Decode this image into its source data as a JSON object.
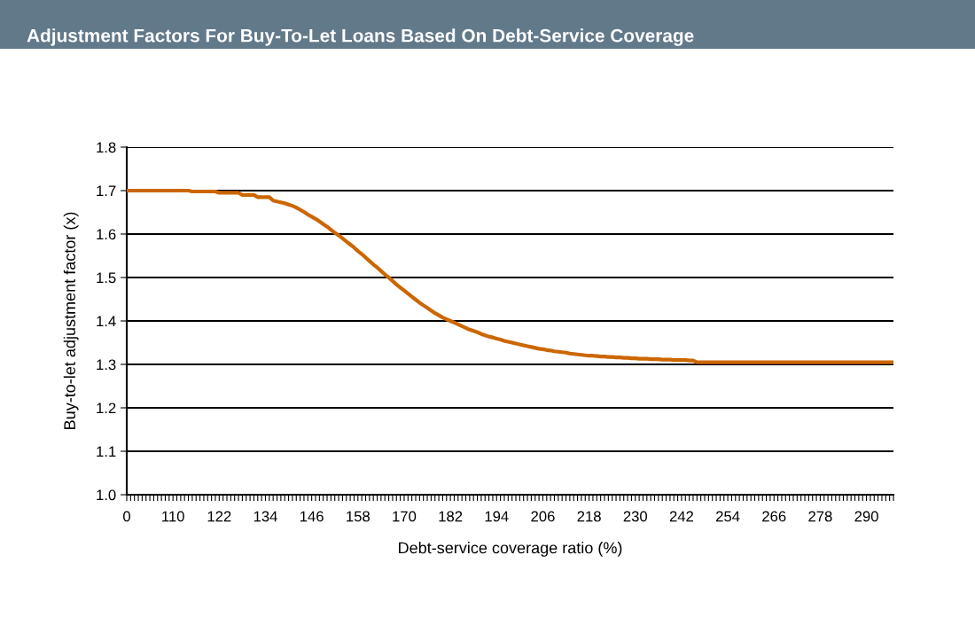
{
  "chart_data": {
    "type": "line",
    "title": "Adjustment Factors For Buy-To-Let Loans Based On Debt-Service Coverage",
    "xlabel": "Debt-service coverage ratio (%)",
    "ylabel": "Buy-to-let adjustment factor (x)",
    "categories": [
      "0",
      null,
      null,
      null,
      null,
      null,
      null,
      null,
      null,
      null,
      null,
      null,
      "110",
      null,
      null,
      null,
      null,
      null,
      null,
      null,
      null,
      null,
      null,
      null,
      "122",
      null,
      null,
      null,
      null,
      null,
      null,
      null,
      null,
      null,
      null,
      null,
      "134",
      null,
      null,
      null,
      null,
      null,
      null,
      null,
      null,
      null,
      null,
      null,
      "146",
      null,
      null,
      null,
      null,
      null,
      null,
      null,
      null,
      null,
      null,
      null,
      "158",
      null,
      null,
      null,
      null,
      null,
      null,
      null,
      null,
      null,
      null,
      null,
      "170",
      null,
      null,
      null,
      null,
      null,
      null,
      null,
      null,
      null,
      null,
      null,
      "182",
      null,
      null,
      null,
      null,
      null,
      null,
      null,
      null,
      null,
      null,
      null,
      "194",
      null,
      null,
      null,
      null,
      null,
      null,
      null,
      null,
      null,
      null,
      null,
      "206",
      null,
      null,
      null,
      null,
      null,
      null,
      null,
      null,
      null,
      null,
      null,
      "218",
      null,
      null,
      null,
      null,
      null,
      null,
      null,
      null,
      null,
      null,
      null,
      "230",
      null,
      null,
      null,
      null,
      null,
      null,
      null,
      null,
      null,
      null,
      null,
      "242",
      null,
      null,
      null,
      null,
      null,
      null,
      null,
      null,
      null,
      null,
      null,
      "254",
      null,
      null,
      null,
      null,
      null,
      null,
      null,
      null,
      null,
      null,
      null,
      "266",
      null,
      null,
      null,
      null,
      null,
      null,
      null,
      null,
      null,
      null,
      null,
      "278",
      null,
      null,
      null,
      null,
      null,
      null,
      null,
      null,
      null,
      null,
      null,
      "290",
      null,
      null,
      null,
      null,
      null,
      null,
      null
    ],
    "series": [
      {
        "color": "#cc6600",
        "values": [
          1.7,
          1.7,
          1.7,
          1.7,
          1.7,
          1.7,
          1.7,
          1.7,
          1.7,
          1.7,
          1.7,
          1.7,
          1.7,
          1.7,
          1.7,
          1.7,
          1.7,
          1.698,
          1.698,
          1.698,
          1.698,
          1.698,
          1.698,
          1.698,
          1.695,
          1.695,
          1.695,
          1.695,
          1.695,
          1.695,
          1.69,
          1.69,
          1.69,
          1.69,
          1.685,
          1.685,
          1.685,
          1.685,
          1.677,
          1.675,
          1.673,
          1.671,
          1.668,
          1.665,
          1.661,
          1.656,
          1.651,
          1.645,
          1.64,
          1.635,
          1.629,
          1.623,
          1.617,
          1.61,
          1.603,
          1.597,
          1.59,
          1.583,
          1.576,
          1.569,
          1.561,
          1.554,
          1.546,
          1.538,
          1.53,
          1.523,
          1.515,
          1.507,
          1.5,
          1.492,
          1.484,
          1.477,
          1.47,
          1.463,
          1.456,
          1.449,
          1.442,
          1.436,
          1.43,
          1.424,
          1.418,
          1.413,
          1.408,
          1.404,
          1.4,
          1.396,
          1.392,
          1.388,
          1.384,
          1.38,
          1.377,
          1.374,
          1.37,
          1.367,
          1.364,
          1.362,
          1.359,
          1.357,
          1.354,
          1.352,
          1.35,
          1.348,
          1.346,
          1.344,
          1.342,
          1.34,
          1.338,
          1.336,
          1.335,
          1.333,
          1.332,
          1.33,
          1.329,
          1.328,
          1.327,
          1.325,
          1.324,
          1.323,
          1.322,
          1.321,
          1.32,
          1.32,
          1.319,
          1.318,
          1.318,
          1.317,
          1.317,
          1.316,
          1.316,
          1.315,
          1.315,
          1.314,
          1.314,
          1.313,
          1.313,
          1.313,
          1.312,
          1.312,
          1.312,
          1.311,
          1.311,
          1.311,
          1.31,
          1.31,
          1.31,
          1.31,
          1.309,
          1.309,
          1.305,
          1.305,
          1.305,
          1.305,
          1.305,
          1.305,
          1.305,
          1.305,
          1.305,
          1.305,
          1.305,
          1.305,
          1.305,
          1.305,
          1.305,
          1.305,
          1.305,
          1.305,
          1.305,
          1.305,
          1.305,
          1.305,
          1.305,
          1.305,
          1.305,
          1.305,
          1.305,
          1.305,
          1.305,
          1.305,
          1.305,
          1.305,
          1.305,
          1.305,
          1.305,
          1.305,
          1.305,
          1.305,
          1.305,
          1.305,
          1.305,
          1.305,
          1.305,
          1.305,
          1.305,
          1.305,
          1.305,
          1.305,
          1.305,
          1.305,
          1.305,
          1.305
        ]
      }
    ],
    "ylim": [
      1.0,
      1.8
    ],
    "yticks": [
      {
        "value": 1.0,
        "label": "1.0"
      },
      1.1,
      1.2,
      1.3,
      1.4,
      1.5,
      1.6,
      1.7,
      1.8
    ],
    "grid": "y",
    "legend": false,
    "marker": "none",
    "line_style": "solid"
  }
}
